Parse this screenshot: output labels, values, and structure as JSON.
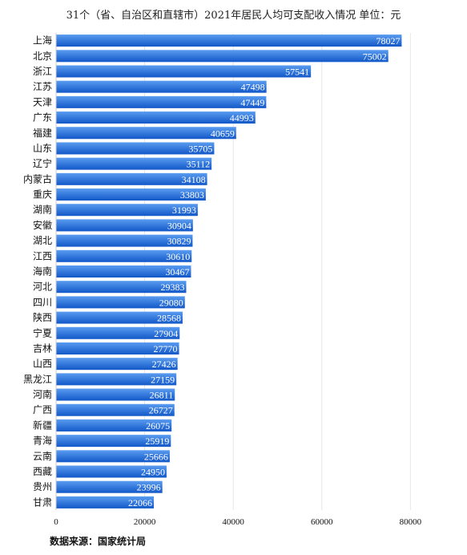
{
  "title": "31个（省、自治区和直辖市）2021年居民人均可支配收入情况 单位：元",
  "source": "数据来源：国家统计局",
  "colors": {
    "bar_top": "#5a9cf0",
    "bar_bottom": "#1258c8",
    "grid": "#e6e6e6"
  },
  "chart_data": {
    "type": "bar",
    "orientation": "horizontal",
    "categories": [
      "上海",
      "北京",
      "浙江",
      "江苏",
      "天津",
      "广东",
      "福建",
      "山东",
      "辽宁",
      "内蒙古",
      "重庆",
      "湖南",
      "安徽",
      "湖北",
      "江西",
      "海南",
      "河北",
      "四川",
      "陕西",
      "宁夏",
      "吉林",
      "山西",
      "黑龙江",
      "河南",
      "广西",
      "新疆",
      "青海",
      "云南",
      "西藏",
      "贵州",
      "甘肃"
    ],
    "values": [
      78027,
      75002,
      57541,
      47498,
      47449,
      44993,
      40659,
      35705,
      35112,
      34108,
      33803,
      31993,
      30904,
      30829,
      30610,
      30467,
      29383,
      29080,
      28568,
      27904,
      27770,
      27426,
      27159,
      26811,
      26727,
      26075,
      25919,
      25666,
      24950,
      23996,
      22066
    ],
    "xlim": [
      0,
      85000
    ],
    "xticks": [
      0,
      20000,
      40000,
      60000,
      80000
    ],
    "grid": true,
    "data_labels": true
  }
}
